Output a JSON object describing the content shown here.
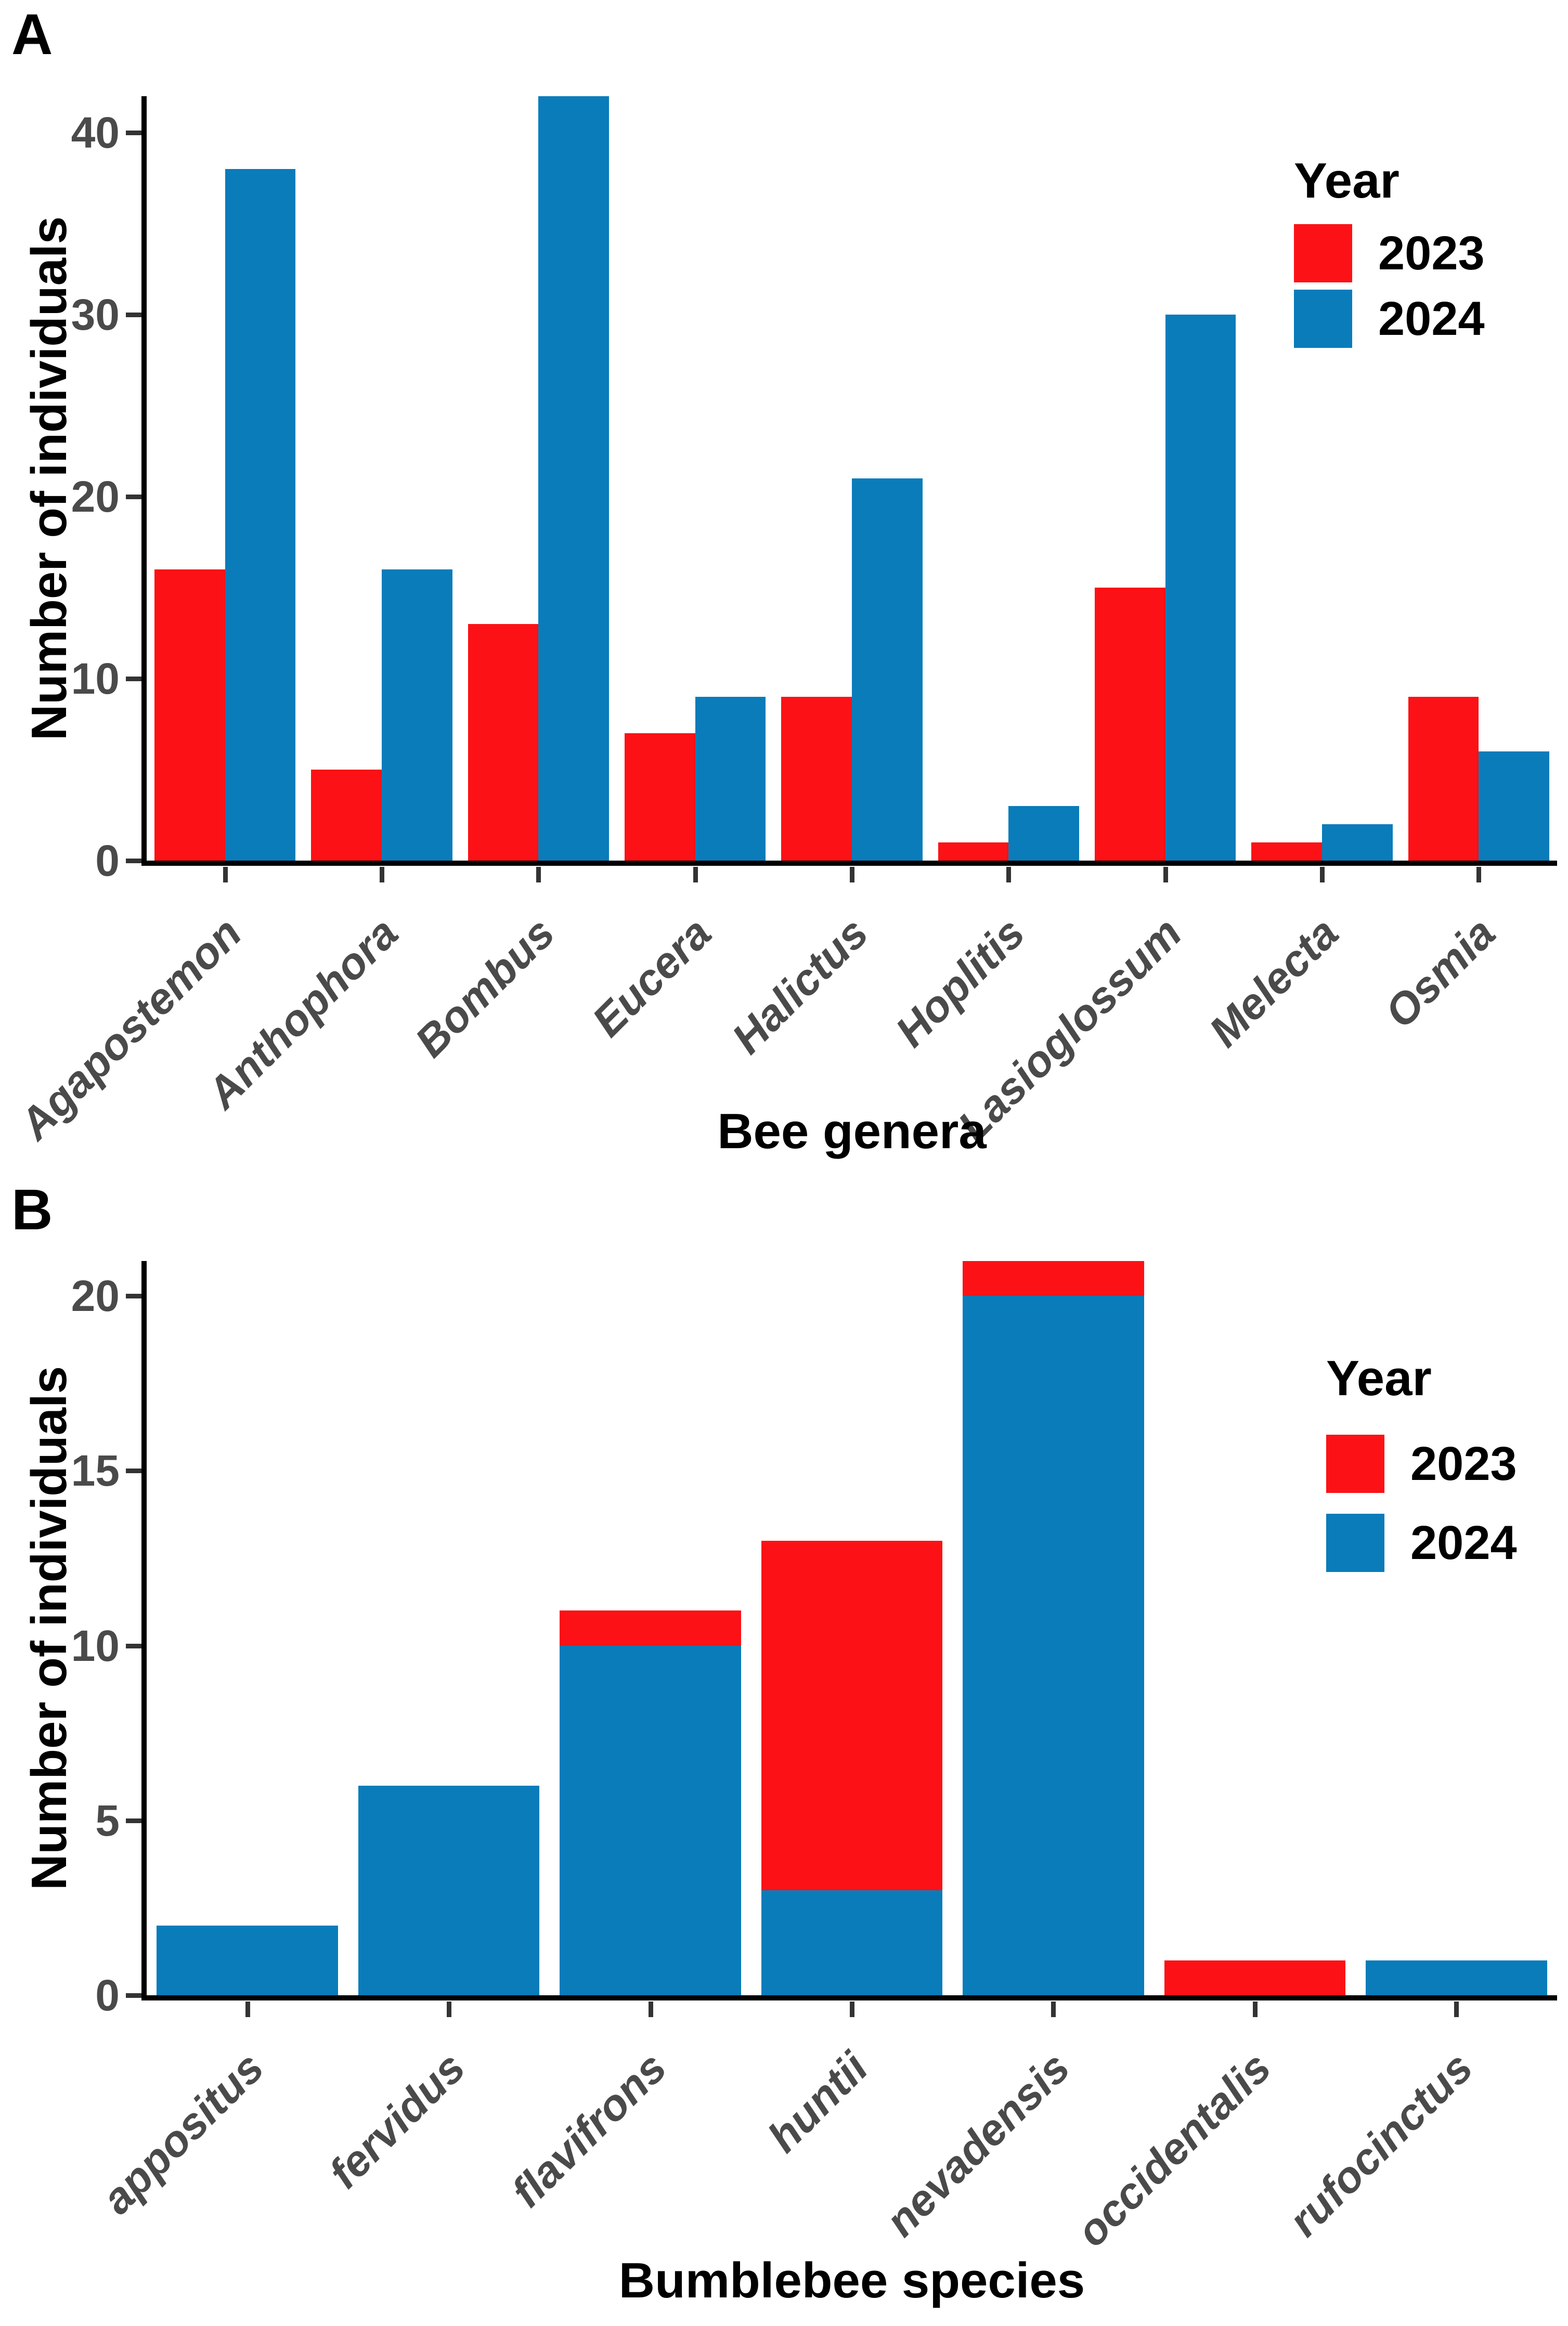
{
  "colors": {
    "background": "#ffffff",
    "year_2023_red": "#fc1216",
    "year_2024_blue": "#0a7cba",
    "axis_line": "#000000",
    "tick_mark": "#333333",
    "tick_label_gray": "#4a4a4a"
  },
  "legend": {
    "title": "Year",
    "entries": [
      {
        "label": "2023",
        "color": "#fc1216"
      },
      {
        "label": "2024",
        "color": "#0a7cba"
      }
    ]
  },
  "chart_data": [
    {
      "type": "bar",
      "panel": "A",
      "grouping": "dodged",
      "xlabel": "Bee genera",
      "ylabel": "Number of individuals",
      "categories": [
        "Agapostemon",
        "Anthophora",
        "Bombus",
        "Eucera",
        "Halictus",
        "Hoplitis",
        "Lasioglossum",
        "Melecta",
        "Osmia"
      ],
      "series": [
        {
          "name": "2023",
          "color": "#fc1216",
          "values": [
            16,
            5,
            13,
            7,
            9,
            1,
            15,
            1,
            9
          ]
        },
        {
          "name": "2024",
          "color": "#0a7cba",
          "values": [
            38,
            16,
            42,
            9,
            21,
            3,
            30,
            2,
            6
          ]
        }
      ],
      "yticks": [
        0,
        10,
        20,
        30,
        40
      ],
      "ylim": [
        0,
        42
      ],
      "legend_position": "upper right",
      "grid": false
    },
    {
      "type": "bar",
      "panel": "B",
      "grouping": "stacked",
      "stack_order_bottom_to_top": [
        "2024",
        "2023"
      ],
      "xlabel": "Bumblebee species",
      "ylabel": "Number of individuals",
      "categories": [
        "appositus",
        "fervidus",
        "flavifrons",
        "huntii",
        "nevadensis",
        "occidentalis",
        "rufocinctus"
      ],
      "series": [
        {
          "name": "2024",
          "color": "#0a7cba",
          "values": [
            2,
            6,
            10,
            3,
            20,
            0,
            1
          ]
        },
        {
          "name": "2023",
          "color": "#fc1216",
          "values": [
            0,
            0,
            1,
            10,
            1,
            1,
            0
          ]
        }
      ],
      "yticks": [
        0,
        5,
        10,
        15,
        20
      ],
      "ylim": [
        0,
        21
      ],
      "legend_position": "upper right",
      "grid": false
    }
  ]
}
